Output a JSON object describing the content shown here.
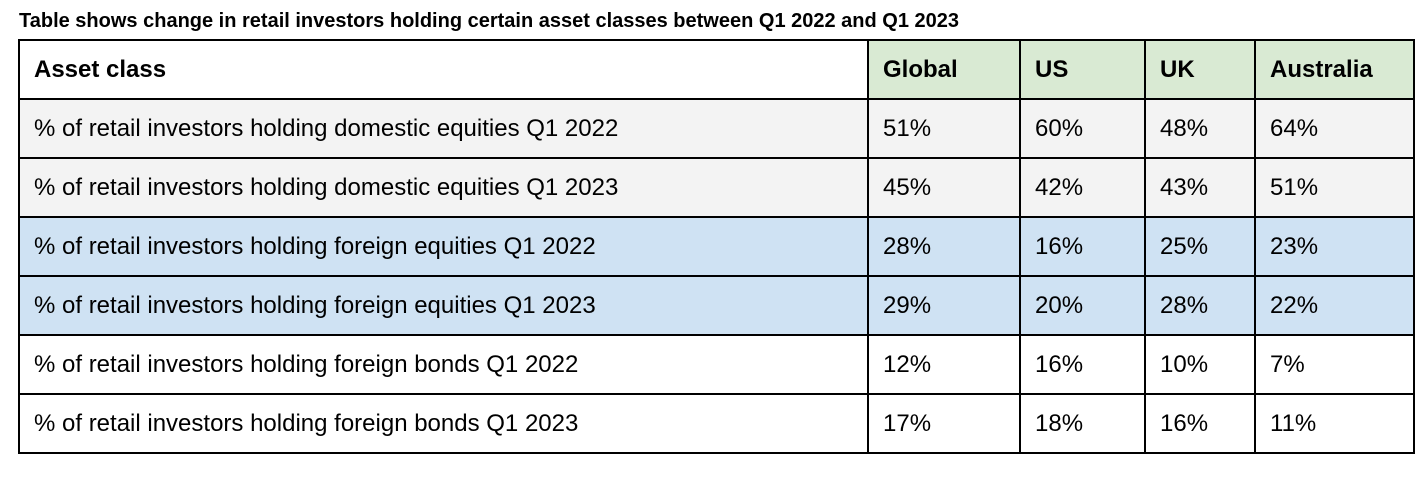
{
  "title": "Table shows change in retail investors holding certain asset classes between Q1 2022 and Q1 2023",
  "colors": {
    "header_accent": "#d9ead3",
    "domestic_rows": "#f3f3f3",
    "foreign_equity_rows": "#cfe2f3",
    "plain_rows": "#ffffff",
    "grid": "#000000"
  },
  "columns": [
    {
      "key": "asset_class",
      "label": "Asset class"
    },
    {
      "key": "global",
      "label": "Global"
    },
    {
      "key": "us",
      "label": "US"
    },
    {
      "key": "uk",
      "label": "UK"
    },
    {
      "key": "australia",
      "label": "Australia"
    }
  ],
  "rows": [
    {
      "label": "% of retail investors holding domestic equities Q1 2022",
      "cells": [
        "51%",
        "60%",
        "48%",
        "64%"
      ],
      "group": "domestic"
    },
    {
      "label": "% of retail investors holding domestic equities Q1 2023",
      "cells": [
        "45%",
        "42%",
        "43%",
        "51%"
      ],
      "group": "domestic"
    },
    {
      "label": "% of retail investors holding foreign equities Q1 2022",
      "cells": [
        "28%",
        "16%",
        "25%",
        "23%"
      ],
      "group": "foreign_equity"
    },
    {
      "label": "% of retail investors holding foreign equities Q1 2023",
      "cells": [
        "29%",
        "20%",
        "28%",
        "22%"
      ],
      "group": "foreign_equity"
    },
    {
      "label": "% of retail investors holding foreign bonds Q1 2022",
      "cells": [
        "12%",
        "16%",
        "10%",
        "7%"
      ],
      "group": "plain"
    },
    {
      "label": "% of retail investors holding foreign bonds Q1 2023",
      "cells": [
        "17%",
        "18%",
        "16%",
        "11%"
      ],
      "group": "plain"
    }
  ]
}
